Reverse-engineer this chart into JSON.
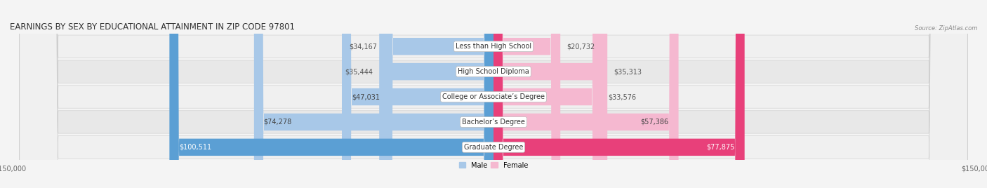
{
  "title": "EARNINGS BY SEX BY EDUCATIONAL ATTAINMENT IN ZIP CODE 97801",
  "source": "Source: ZipAtlas.com",
  "categories": [
    "Less than High School",
    "High School Diploma",
    "College or Associate’s Degree",
    "Bachelor’s Degree",
    "Graduate Degree"
  ],
  "male_values": [
    34167,
    35444,
    47031,
    74278,
    100511
  ],
  "female_values": [
    20732,
    35313,
    33576,
    57386,
    77875
  ],
  "male_colors": [
    "#a8c8e8",
    "#a8c8e8",
    "#a8c8e8",
    "#a8c8e8",
    "#5b9fd4"
  ],
  "female_colors": [
    "#f5b8d0",
    "#f5b8d0",
    "#f5b8d0",
    "#f5b8d0",
    "#e8407a"
  ],
  "axis_max": 150000,
  "bg_color": "#f4f4f4",
  "row_colors": [
    "#efefef",
    "#e6e6e6",
    "#efefef",
    "#e6e6e6",
    "#efefef"
  ],
  "title_fontsize": 8.5,
  "source_fontsize": 6,
  "label_fontsize": 7,
  "value_fontsize": 7,
  "legend_fontsize": 7
}
